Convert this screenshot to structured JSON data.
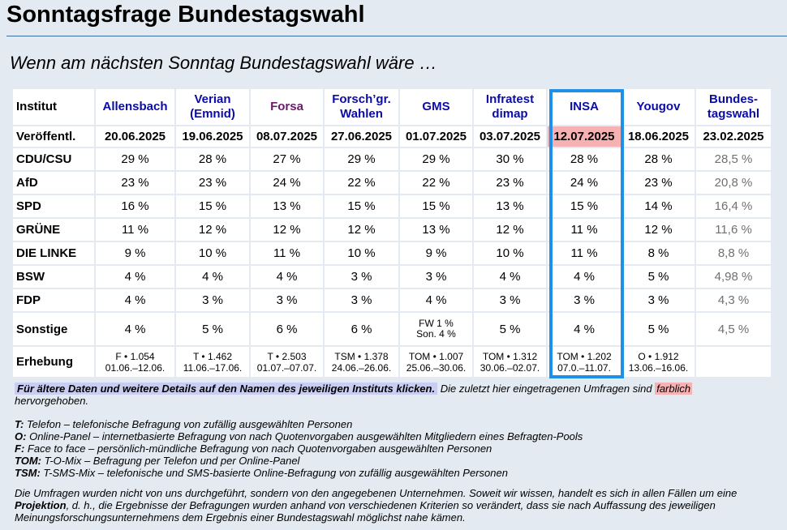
{
  "page": {
    "title": "Sonntagsfrage Bundestagswahl",
    "subtitle": "Wenn am nächsten Sonntag Bundestagswahl wäre …"
  },
  "table": {
    "row_labels": {
      "institute": "Institut",
      "published": "Veröffentl.",
      "survey": "Erhebung"
    },
    "institutes": [
      {
        "name_line1": "Allensbach",
        "name_line2": "",
        "published": "20.06.2025",
        "survey_line1": "F • 1.054",
        "survey_line2": "01.06.–12.06."
      },
      {
        "name_line1": "Verian",
        "name_line2": "(Emnid)",
        "published": "19.06.2025",
        "survey_line1": "T • 1.462",
        "survey_line2": "11.06.–17.06."
      },
      {
        "name_line1": "Forsa",
        "name_line2": "",
        "published": "08.07.2025",
        "survey_line1": "T • 2.503",
        "survey_line2": "01.07.–07.07."
      },
      {
        "name_line1": "Forsch’gr.",
        "name_line2": "Wahlen",
        "published": "27.06.2025",
        "survey_line1": "TSM • 1.378",
        "survey_line2": "24.06.–26.06."
      },
      {
        "name_line1": "GMS",
        "name_line2": "",
        "published": "01.07.2025",
        "survey_line1": "TOM • 1.007",
        "survey_line2": "25.06.–30.06."
      },
      {
        "name_line1": "Infratest",
        "name_line2": "dimap",
        "published": "03.07.2025",
        "survey_line1": "TOM • 1.312",
        "survey_line2": "30.06.–02.07."
      },
      {
        "name_line1": "INSA",
        "name_line2": "",
        "published": "12.07.2025",
        "survey_line1": "TOM • 1.202",
        "survey_line2": "07.0.–11.07."
      },
      {
        "name_line1": "Yougov",
        "name_line2": "",
        "published": "18.06.2025",
        "survey_line1": "O • 1.912",
        "survey_line2": "13.06.–16.06."
      },
      {
        "name_line1": "Bundes-",
        "name_line2": "tagswahl",
        "published": "23.02.2025",
        "survey_line1": "",
        "survey_line2": ""
      }
    ],
    "parties": [
      {
        "name": "CDU/CSU",
        "values": [
          "29 %",
          "28 %",
          "27 %",
          "29 %",
          "29 %",
          "30 %",
          "28 %",
          "28 %",
          "28,5 %"
        ]
      },
      {
        "name": "AfD",
        "values": [
          "23 %",
          "23 %",
          "24 %",
          "22 %",
          "22 %",
          "23 %",
          "24 %",
          "23 %",
          "20,8 %"
        ]
      },
      {
        "name": "SPD",
        "values": [
          "16 %",
          "15 %",
          "13 %",
          "15 %",
          "15 %",
          "13 %",
          "15 %",
          "14 %",
          "16,4 %"
        ]
      },
      {
        "name": "GRÜNE",
        "values": [
          "11 %",
          "12 %",
          "12 %",
          "12 %",
          "13 %",
          "12 %",
          "11 %",
          "12 %",
          "11,6 %"
        ]
      },
      {
        "name": "DIE LINKE",
        "values": [
          "9 %",
          "10 %",
          "11 %",
          "10 %",
          "9 %",
          "10 %",
          "11 %",
          "8 %",
          "8,8 %"
        ]
      },
      {
        "name": "BSW",
        "values": [
          "4 %",
          "4 %",
          "4 %",
          "3 %",
          "3 %",
          "4 %",
          "4 %",
          "5 %",
          "4,98 %"
        ]
      },
      {
        "name": "FDP",
        "values": [
          "4 %",
          "3 %",
          "3 %",
          "3 %",
          "4 %",
          "3 %",
          "3 %",
          "3 %",
          "4,3 %"
        ]
      }
    ],
    "sonstige": {
      "name": "Sonstige",
      "values": [
        "4 %",
        "5 %",
        "6 %",
        "6 %",
        "",
        "5 %",
        "4 %",
        "5 %",
        "4,5 %"
      ],
      "gms_line1": "FW 1 %",
      "gms_line2": "Son. 4 %"
    }
  },
  "notes": {
    "tip": "Für ältere Daten und weitere Details auf den Namen des jeweiligen Instituts klicken.",
    "highlight_pre": "Die zuletzt hier eingetragenen Umfragen sind",
    "highlight_word": "farblich",
    "highlight_post": "hervorgehoben."
  },
  "legend": [
    {
      "key": "T:",
      "text": "Telefon – telefonische Befragung von zufällig ausgewählten Personen"
    },
    {
      "key": "O:",
      "text": "Online-Panel – internetbasierte Befragung von nach Quotenvorgaben ausgewählten Mitgliedern eines Befragten-Pools"
    },
    {
      "key": "F:",
      "text": "Face to face – persönlich-mündliche Befragung von nach Quotenvorgaben ausgewählten Personen"
    },
    {
      "key": "TOM:",
      "text": "T-O-Mix – Befragung per Telefon und per Online-Panel"
    },
    {
      "key": "TSM:",
      "text": "T-SMS-Mix – telefonische und SMS-basierte Online-Befragung von zufällig ausgewählten Personen"
    }
  ],
  "disclaimer": {
    "part1": "Die Umfragen wurden nicht von uns durchgeführt, sondern von den angegebenen Unternehmen. Soweit wir wissen, handelt es sich in allen Fällen um eine",
    "bold": "Projektion",
    "part2": ", d. h., die Ergebnisse der Befragungen wurden anhand von verschiedenen Kriterien so verändert, dass sie nach Auffassung des jeweiligen Meinungsforschungsunternehmens dem Ergebnis einer Bundestagswahl möglichst nahe kämen."
  },
  "colors": {
    "background": "#e3eaf2",
    "link": "#0b0ba8",
    "forsa": "#6b1a6b",
    "highlight_fill": "#f6b2b2",
    "highlight_border": "#1e90e8",
    "tip_fill": "#c9cdf2",
    "election_grey": "#707070"
  }
}
